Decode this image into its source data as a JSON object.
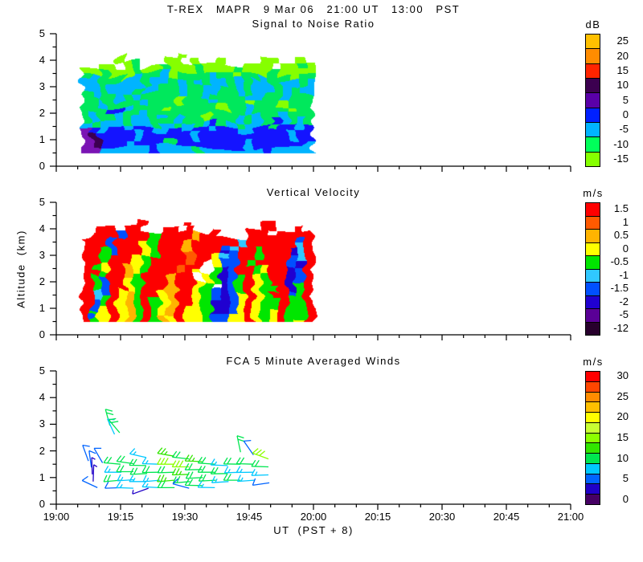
{
  "title": "T-REX   MAPR   9 Mar 06   21:00 UT   13:00   PST",
  "axes": {
    "x": {
      "label": "UT  (PST + 8)",
      "major_ticks": [
        "19:00",
        "19:15",
        "19:30",
        "19:45",
        "20:00",
        "20:15",
        "20:30",
        "20:45",
        "21:00"
      ],
      "major_step_minutes": 15,
      "minor_step_minutes": 5,
      "min_minutes": 0,
      "max_minutes": 120
    },
    "y": {
      "label": "Altitude  (km)",
      "min": 0,
      "max": 5,
      "major_ticks": [
        "0",
        "1",
        "2",
        "3",
        "4",
        "5"
      ],
      "minor_step": 0.5
    }
  },
  "chart_data": [
    {
      "type": "heatmap",
      "title": "Signal to Noise Ratio",
      "units": "dB",
      "colorbar": {
        "colors": [
          "#FFC000",
          "#FF8C00",
          "#FF2400",
          "#3C0050",
          "#5A00A8",
          "#0020FF",
          "#00B4FF",
          "#00FF5A",
          "#86FF00"
        ],
        "labels": [
          "25",
          "20",
          "15",
          "10",
          "5",
          "0",
          "-5",
          "-10",
          "-15"
        ]
      },
      "time_span_minutes": [
        6,
        60
      ],
      "alt_span_km": [
        0.5,
        4.25
      ],
      "palette": {
        "a": "#86FF00",
        "g": "#00E85C",
        "c": "#00B4FF",
        "b": "#1414FF",
        "p": "#7A14B4",
        "d": "#3C0050",
        ".": null
      },
      "grid_rows_top_to_bottom": [
        "....a......a........aa..a.",
        "..aa.ag...aa.a..a..aaa.aaga",
        "aagaaagaagaaagaaaagaaagaaaa",
        "gcgggacggcaggggcggaggcggagg",
        "ccgccccgccgcgcgccgcgccgccgc",
        "ccgcccgccggcggccggcgccgcgcc",
        "gcggcgcggggcggcggggccggcggg",
        "ggcggggcgggagggcgggagggaggg",
        "gggbbcgggaggggggaggcggggagg",
        "gcggcggcgggcggagggcgcggcggg",
        "cgcccgccgccgcgcbgcgccgbcgcg",
        "pbcbbcbbccbbcbbcbbccbbgbbcb",
        "pdbbbbcbbbbbbcbbbbbbbbbbcbb",
        "pdbbbcbbbbgbbbbbbbbcbbbbbbc",
        "ppccccccbccccgcccccccbccccc"
      ]
    },
    {
      "type": "heatmap",
      "title": "Vertical Velocity",
      "units": "m/s",
      "colorbar": {
        "colors": [
          "#FF0000",
          "#FF5A00",
          "#FFB400",
          "#FFFF00",
          "#00E600",
          "#30C8FF",
          "#0050FF",
          "#2000D0",
          "#5A0096",
          "#28002D"
        ],
        "labels": [
          "1.5",
          "1",
          "0.5",
          "0",
          "-0.5",
          "-1",
          "-1.5",
          "-2",
          "-5",
          "-12"
        ]
      },
      "time_span_minutes": [
        6,
        60
      ],
      "alt_span_km": [
        0.5,
        4.25
      ],
      "palette": {
        "r": "#FD0000",
        "o": "#FF5A00",
        "m": "#FFB400",
        "y": "#FFFF00",
        "g": "#00E600",
        "c": "#30C8FF",
        "b": "#0050FF",
        "i": "#2000D0",
        "p": "#5A0096",
        "k": "#28002D",
        "w": "#FFFFFF",
        ".": null
      },
      "grid_rows_top_to_bottom": [
        "......r....r........rr..r.",
        "..rr.rr..rr.r..r...rrr.rrrr",
        "rrrrbrrrgrrrrmrrrrcrrrrrrbr",
        "rrrbrrrygrrrmrrrbcrrgrrrrcr",
        "rrgbrrrygrrrorrribrrgrrricr",
        "rrgrrrygrrrrorrycbrrgrrrbcr",
        "rgyrrmygrrrorrwybbrgrrrrbir",
        "rrgrrmgrrrrorywgibrrgyrribr",
        "rgbrrygrrrmrrwygibgrygrribr",
        "rgbrrygrrrmrrygwibgrygrrigr",
        "rcbrymgrrymrrygbibyryggrbgr",
        "rcgrymgrgymrrygbibyrygrrggr",
        "rbgrymgrgymryygiibyryggrggr",
        "rbyrymgrgymryygiibyrygyrggr",
        "rgyrymgrgmyryygbbyyrygyrgyr"
      ]
    },
    {
      "type": "wind_barbs",
      "title": "FCA 5 Minute Averaged Winds",
      "units": "m/s",
      "colorbar": {
        "colors": [
          "#FF0000",
          "#FF4600",
          "#FF8C00",
          "#FFC000",
          "#FFFF00",
          "#C8FF32",
          "#8CFF00",
          "#32E600",
          "#00E650",
          "#00C8FF",
          "#0064FF",
          "#2000C8",
          "#460064"
        ],
        "labels": [
          "30",
          "",
          "25",
          "",
          "20",
          "",
          "15",
          "",
          "10",
          "",
          "5",
          "",
          "0"
        ]
      },
      "speed_colors_low_to_high": [
        "#460064",
        "#2000C8",
        "#0064FF",
        "#00C8FF",
        "#00E650",
        "#32E600",
        "#8CFF00",
        "#C8FF32",
        "#FFFF00",
        "#FFC000",
        "#FF8C00",
        "#FF4600",
        "#FF0000"
      ],
      "speed_step": 2.5,
      "barbs": [
        {
          "t": 7.5,
          "a": 1.62,
          "s": 7,
          "d": 250
        },
        {
          "t": 8.2,
          "a": 1.38,
          "s": 6,
          "d": 262
        },
        {
          "t": 8.4,
          "a": 1.12,
          "s": 4,
          "d": 268
        },
        {
          "t": 8.6,
          "a": 0.85,
          "s": 3,
          "d": 272
        },
        {
          "t": 9.6,
          "a": 0.62,
          "s": 5,
          "d": 205
        },
        {
          "t": 10.8,
          "a": 1.55,
          "s": 7,
          "d": 240
        },
        {
          "t": 12.5,
          "a": 2.95,
          "s": 12,
          "d": 255
        },
        {
          "t": 13.6,
          "a": 2.62,
          "s": 8,
          "d": 245
        },
        {
          "t": 14.8,
          "a": 2.68,
          "s": 11,
          "d": 230
        },
        {
          "t": 15,
          "a": 1.5,
          "s": 10,
          "d": 185
        },
        {
          "t": 15.2,
          "a": 1.2,
          "s": 9,
          "d": 180
        },
        {
          "t": 15,
          "a": 0.9,
          "s": 10,
          "d": 175
        },
        {
          "t": 15.3,
          "a": 0.62,
          "s": 7,
          "d": 178
        },
        {
          "t": 18,
          "a": 1.52,
          "s": 12,
          "d": 188
        },
        {
          "t": 18,
          "a": 1.22,
          "s": 10,
          "d": 180
        },
        {
          "t": 18.2,
          "a": 0.92,
          "s": 9,
          "d": 176
        },
        {
          "t": 18,
          "a": 0.6,
          "s": 8,
          "d": 182
        },
        {
          "t": 21,
          "a": 1.75,
          "s": 8,
          "d": 193
        },
        {
          "t": 21,
          "a": 1.45,
          "s": 11,
          "d": 181
        },
        {
          "t": 21.2,
          "a": 1.15,
          "s": 10,
          "d": 177
        },
        {
          "t": 21,
          "a": 0.85,
          "s": 9,
          "d": 180
        },
        {
          "t": 21.5,
          "a": 0.6,
          "s": 4,
          "d": 160
        },
        {
          "t": 24,
          "a": 1.5,
          "s": 9,
          "d": 182
        },
        {
          "t": 24,
          "a": 1.2,
          "s": 10,
          "d": 179
        },
        {
          "t": 24.2,
          "a": 0.9,
          "s": 8,
          "d": 175
        },
        {
          "t": 24,
          "a": 0.62,
          "s": 9,
          "d": 183
        },
        {
          "t": 27.5,
          "a": 1.8,
          "s": 13,
          "d": 190
        },
        {
          "t": 27.5,
          "a": 1.5,
          "s": 15,
          "d": 180
        },
        {
          "t": 27.6,
          "a": 1.2,
          "s": 12,
          "d": 178
        },
        {
          "t": 27.5,
          "a": 0.9,
          "s": 14,
          "d": 175
        },
        {
          "t": 27.6,
          "a": 0.62,
          "s": 10,
          "d": 180
        },
        {
          "t": 31,
          "a": 1.7,
          "s": 12,
          "d": 186
        },
        {
          "t": 31,
          "a": 1.4,
          "s": 16,
          "d": 180
        },
        {
          "t": 31,
          "a": 1.12,
          "s": 13,
          "d": 178
        },
        {
          "t": 31.2,
          "a": 0.85,
          "s": 10,
          "d": 175
        },
        {
          "t": 31,
          "a": 0.6,
          "s": 5,
          "d": 195
        },
        {
          "t": 34,
          "a": 1.6,
          "s": 14,
          "d": 182
        },
        {
          "t": 34,
          "a": 1.3,
          "s": 12,
          "d": 179
        },
        {
          "t": 34.2,
          "a": 1.0,
          "s": 11,
          "d": 177
        },
        {
          "t": 34,
          "a": 0.7,
          "s": 10,
          "d": 181
        },
        {
          "t": 37,
          "a": 1.5,
          "s": 10,
          "d": 184
        },
        {
          "t": 37,
          "a": 1.2,
          "s": 12,
          "d": 180
        },
        {
          "t": 37.2,
          "a": 0.9,
          "s": 11,
          "d": 177
        },
        {
          "t": 37,
          "a": 0.62,
          "s": 9,
          "d": 181
        },
        {
          "t": 40,
          "a": 1.45,
          "s": 9,
          "d": 182
        },
        {
          "t": 40,
          "a": 1.15,
          "s": 10,
          "d": 179
        },
        {
          "t": 40.2,
          "a": 0.85,
          "s": 9,
          "d": 176
        },
        {
          "t": 43,
          "a": 1.95,
          "s": 12,
          "d": 258
        },
        {
          "t": 43,
          "a": 1.5,
          "s": 10,
          "d": 181
        },
        {
          "t": 43.2,
          "a": 1.2,
          "s": 9,
          "d": 178
        },
        {
          "t": 43,
          "a": 0.9,
          "s": 10,
          "d": 180
        },
        {
          "t": 46,
          "a": 1.85,
          "s": 6,
          "d": 235
        },
        {
          "t": 46,
          "a": 1.5,
          "s": 11,
          "d": 182
        },
        {
          "t": 46,
          "a": 1.2,
          "s": 9,
          "d": 179
        },
        {
          "t": 46.2,
          "a": 0.9,
          "s": 8,
          "d": 176
        },
        {
          "t": 49.5,
          "a": 1.7,
          "s": 16,
          "d": 200
        },
        {
          "t": 49.5,
          "a": 1.4,
          "s": 12,
          "d": 182
        },
        {
          "t": 49.5,
          "a": 1.1,
          "s": 9,
          "d": 178
        },
        {
          "t": 49.7,
          "a": 0.8,
          "s": 7,
          "d": 172
        }
      ]
    }
  ]
}
